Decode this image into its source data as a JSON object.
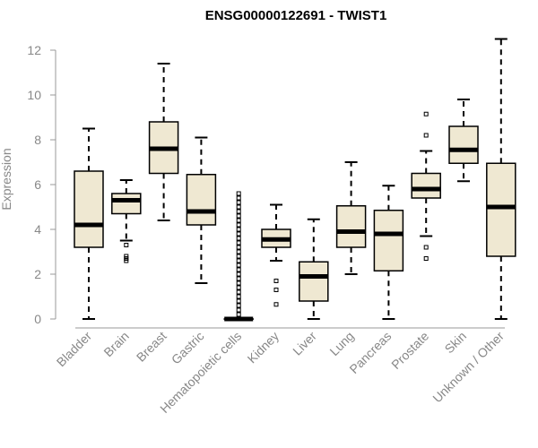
{
  "chart_data": {
    "type": "boxplot",
    "title": "ENSG00000122691 - TWIST1",
    "xlabel": "",
    "ylabel": "Expression",
    "ylim": [
      0,
      12.6
    ],
    "yticks": [
      0,
      2,
      4,
      6,
      8,
      10,
      12
    ],
    "grid": false,
    "legend": "none",
    "colors": {
      "box_fill": "#efe8d2",
      "stroke": "#000000",
      "axis": "#999999",
      "text": "#888888"
    },
    "categories": [
      "Bladder",
      "Brain",
      "Breast",
      "Gastric",
      "Hematopoietic cells",
      "Kidney",
      "Liver",
      "Lung",
      "Pancreas",
      "Prostate",
      "Skin",
      "Unknown / Other"
    ],
    "boxes": [
      {
        "min": 0.0,
        "q1": 3.2,
        "median": 4.2,
        "q3": 6.6,
        "max": 8.5,
        "outliers": []
      },
      {
        "min": 3.5,
        "q1": 4.7,
        "median": 5.3,
        "q3": 5.6,
        "max": 6.2,
        "outliers": [
          3.3,
          2.8,
          2.7,
          2.6
        ]
      },
      {
        "min": 4.4,
        "q1": 6.5,
        "median": 7.6,
        "q3": 8.8,
        "max": 11.4,
        "outliers": []
      },
      {
        "min": 1.6,
        "q1": 4.2,
        "median": 4.8,
        "q3": 6.45,
        "max": 8.1,
        "outliers": []
      },
      {
        "min": 0.0,
        "q1": 0.0,
        "median": 0.0,
        "q3": 0.0,
        "max": 0.0,
        "outliers": [
          0.2,
          0.4,
          0.6,
          0.8,
          1.0,
          1.2,
          1.4,
          1.6,
          1.8,
          2.0,
          2.2,
          2.4,
          2.6,
          2.8,
          3.0,
          3.2,
          3.4,
          3.6,
          3.8,
          4.0,
          4.2,
          4.4,
          4.6,
          4.8,
          5.0,
          5.2,
          5.4,
          5.6
        ]
      },
      {
        "min": 2.6,
        "q1": 3.2,
        "median": 3.55,
        "q3": 4.0,
        "max": 5.1,
        "outliers": [
          1.7,
          1.3,
          0.65
        ]
      },
      {
        "min": 0.0,
        "q1": 0.8,
        "median": 1.9,
        "q3": 2.55,
        "max": 4.45,
        "outliers": []
      },
      {
        "min": 2.0,
        "q1": 3.2,
        "median": 3.9,
        "q3": 5.05,
        "max": 7.0,
        "outliers": []
      },
      {
        "min": 0.0,
        "q1": 2.15,
        "median": 3.8,
        "q3": 4.85,
        "max": 5.95,
        "outliers": []
      },
      {
        "min": 3.7,
        "q1": 5.4,
        "median": 5.8,
        "q3": 6.5,
        "max": 7.5,
        "outliers": [
          9.15,
          8.2,
          3.2,
          2.7
        ]
      },
      {
        "min": 6.15,
        "q1": 6.95,
        "median": 7.55,
        "q3": 8.6,
        "max": 9.8,
        "outliers": []
      },
      {
        "min": 0.0,
        "q1": 2.8,
        "median": 5.0,
        "q3": 6.95,
        "max": 12.5,
        "outliers": []
      }
    ]
  }
}
